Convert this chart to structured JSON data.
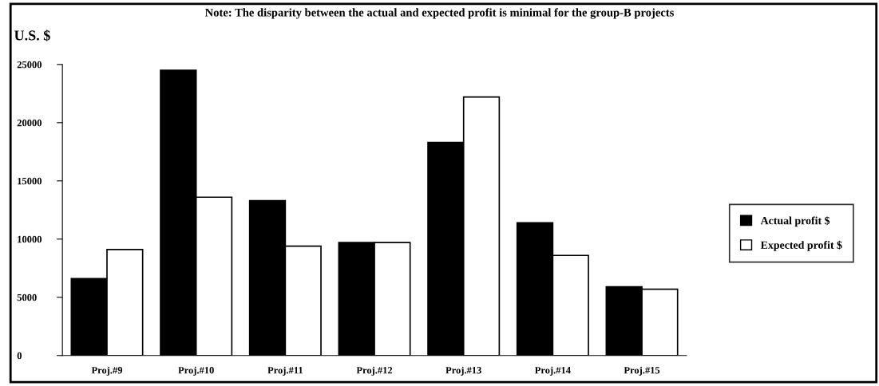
{
  "chart_data": {
    "type": "bar",
    "title": "Note: The disparity between the actual and expected profit is minimal for the group-B projects",
    "ylabel": "U.S. $",
    "categories": [
      "Proj.#9",
      "Proj.#10",
      "Proj.#11",
      "Proj.#12",
      "Proj.#13",
      "Proj.#14",
      "Proj.#15"
    ],
    "series": [
      {
        "name": "Actual profit $",
        "color": "#000000",
        "values": [
          6600,
          24500,
          13300,
          9700,
          18300,
          11400,
          5900
        ]
      },
      {
        "name": "Expected profit $",
        "color": "#ffffff",
        "values": [
          9100,
          13600,
          9400,
          9700,
          22200,
          8600,
          5700
        ]
      }
    ],
    "ylim": [
      0,
      25000
    ],
    "yticks": [
      0,
      5000,
      10000,
      15000,
      20000,
      25000
    ],
    "grid": false,
    "legend": "right"
  }
}
